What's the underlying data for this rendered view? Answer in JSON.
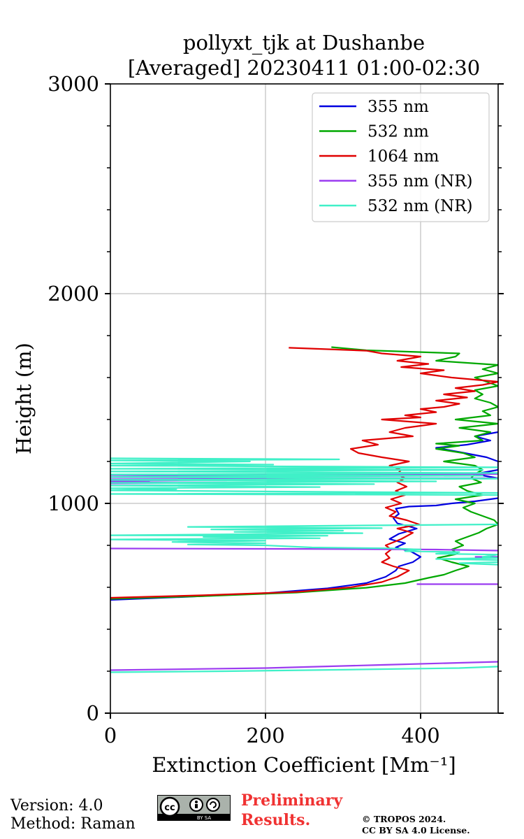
{
  "chart_data": {
    "type": "line",
    "title": [
      "pollyxt_tjk at Dushanbe",
      "[Averaged] 20230411 01:00-02:30"
    ],
    "xlabel": "Extinction Coefficient [Mm⁻¹]",
    "ylabel": "Height (m)",
    "xlim": [
      0,
      500
    ],
    "ylim": [
      0,
      3000
    ],
    "xticks": [
      "0",
      "200",
      "400"
    ],
    "yticks": [
      "0",
      "1000",
      "2000",
      "3000"
    ],
    "grid": true,
    "legend_position": "top-right",
    "series": [
      {
        "name": "355 nm",
        "color": "#0000e0",
        "points": [
          [
            0,
            540
          ],
          [
            100,
            555
          ],
          [
            200,
            572
          ],
          [
            280,
            595
          ],
          [
            330,
            620
          ],
          [
            355,
            650
          ],
          [
            368,
            680
          ],
          [
            372,
            700
          ],
          [
            390,
            720
          ],
          [
            400,
            745
          ],
          [
            388,
            770
          ],
          [
            368,
            790
          ],
          [
            380,
            810
          ],
          [
            360,
            830
          ],
          [
            372,
            855
          ],
          [
            395,
            880
          ],
          [
            370,
            905
          ],
          [
            365,
            930
          ],
          [
            372,
            950
          ],
          [
            368,
            975
          ],
          [
            385,
            985
          ],
          [
            420,
            990
          ],
          [
            440,
            1000
          ],
          [
            470,
            1010
          ],
          [
            500,
            1025
          ]
        ]
      },
      {
        "name": "355 nm",
        "color": "#0000e0",
        "points": [
          [
            500,
            1120
          ],
          [
            470,
            1140
          ],
          [
            500,
            1160
          ],
          [
            500,
            1200
          ],
          [
            485,
            1220
          ],
          [
            450,
            1245
          ],
          [
            420,
            1265
          ],
          [
            460,
            1280
          ],
          [
            490,
            1300
          ],
          [
            470,
            1320
          ],
          [
            500,
            1340
          ]
        ]
      },
      {
        "name": "532 nm",
        "color": "#00a800",
        "points": [
          [
            0,
            545
          ],
          [
            120,
            558
          ],
          [
            240,
            575
          ],
          [
            330,
            598
          ],
          [
            380,
            620
          ],
          [
            410,
            645
          ],
          [
            430,
            660
          ],
          [
            445,
            680
          ],
          [
            462,
            700
          ],
          [
            440,
            720
          ],
          [
            422,
            740
          ],
          [
            448,
            760
          ],
          [
            440,
            780
          ],
          [
            455,
            800
          ],
          [
            445,
            820
          ],
          [
            460,
            840
          ],
          [
            475,
            860
          ],
          [
            485,
            880
          ],
          [
            500,
            900
          ],
          [
            495,
            920
          ],
          [
            480,
            940
          ],
          [
            465,
            960
          ],
          [
            455,
            980
          ],
          [
            470,
            1000
          ],
          [
            445,
            1020
          ],
          [
            480,
            1040
          ],
          [
            460,
            1060
          ],
          [
            450,
            1080
          ],
          [
            478,
            1100
          ],
          [
            465,
            1120
          ],
          [
            470,
            1140
          ],
          [
            480,
            1160
          ],
          [
            470,
            1180
          ],
          [
            430,
            1200
          ],
          [
            470,
            1220
          ],
          [
            455,
            1240
          ],
          [
            420,
            1260
          ],
          [
            450,
            1275
          ],
          [
            420,
            1285
          ],
          [
            480,
            1300
          ],
          [
            470,
            1320
          ],
          [
            490,
            1340
          ],
          [
            450,
            1360
          ],
          [
            500,
            1380
          ],
          [
            445,
            1400
          ],
          [
            490,
            1420
          ],
          [
            480,
            1440
          ],
          [
            500,
            1460
          ],
          [
            490,
            1480
          ],
          [
            470,
            1500
          ],
          [
            480,
            1520
          ],
          [
            470,
            1540
          ],
          [
            500,
            1560
          ],
          [
            485,
            1580
          ],
          [
            470,
            1600
          ],
          [
            500,
            1620
          ],
          [
            480,
            1640
          ],
          [
            500,
            1660
          ],
          [
            420,
            1680
          ],
          [
            445,
            1700
          ],
          [
            450,
            1715
          ],
          [
            330,
            1730
          ],
          [
            285,
            1745
          ]
        ]
      },
      {
        "name": "1064 nm",
        "color": "#e00000",
        "points": [
          [
            0,
            550
          ],
          [
            120,
            562
          ],
          [
            240,
            578
          ],
          [
            310,
            600
          ],
          [
            350,
            625
          ],
          [
            370,
            650
          ],
          [
            385,
            680
          ],
          [
            365,
            700
          ],
          [
            350,
            720
          ],
          [
            360,
            740
          ],
          [
            355,
            760
          ],
          [
            362,
            780
          ],
          [
            355,
            800
          ],
          [
            375,
            830
          ],
          [
            390,
            860
          ],
          [
            370,
            880
          ],
          [
            398,
            900
          ],
          [
            382,
            920
          ],
          [
            360,
            940
          ],
          [
            368,
            960
          ],
          [
            355,
            980
          ],
          [
            375,
            1000
          ],
          [
            362,
            1020
          ],
          [
            380,
            1040
          ],
          [
            368,
            1060
          ],
          [
            382,
            1080
          ],
          [
            370,
            1100
          ],
          [
            380,
            1120
          ],
          [
            370,
            1140
          ],
          [
            375,
            1160
          ],
          [
            360,
            1180
          ],
          [
            385,
            1200
          ],
          [
            350,
            1220
          ],
          [
            320,
            1240
          ],
          [
            310,
            1260
          ],
          [
            345,
            1280
          ],
          [
            325,
            1300
          ],
          [
            390,
            1320
          ],
          [
            360,
            1340
          ],
          [
            380,
            1360
          ],
          [
            420,
            1380
          ],
          [
            350,
            1400
          ],
          [
            400,
            1410
          ],
          [
            380,
            1420
          ],
          [
            420,
            1435
          ],
          [
            400,
            1450
          ],
          [
            430,
            1460
          ],
          [
            450,
            1475
          ],
          [
            420,
            1490
          ],
          [
            460,
            1505
          ],
          [
            430,
            1520
          ],
          [
            470,
            1535
          ],
          [
            445,
            1550
          ],
          [
            480,
            1565
          ],
          [
            500,
            1580
          ],
          [
            440,
            1600
          ],
          [
            400,
            1620
          ],
          [
            430,
            1635
          ],
          [
            375,
            1650
          ],
          [
            410,
            1665
          ],
          [
            370,
            1680
          ],
          [
            400,
            1700
          ],
          [
            350,
            1715
          ],
          [
            330,
            1728
          ],
          [
            230,
            1742
          ]
        ]
      },
      {
        "name": "355 nm (NR)",
        "color": "#9b3cf0",
        "points": [
          [
            0,
            205
          ],
          [
            200,
            215
          ],
          [
            350,
            230
          ],
          [
            500,
            245
          ]
        ]
      },
      {
        "name": "355 nm (NR)",
        "color": "#9b3cf0",
        "points": [
          [
            0,
            785
          ],
          [
            250,
            783
          ],
          [
            420,
            780
          ],
          [
            500,
            775
          ]
        ]
      },
      {
        "name": "355 nm (NR)",
        "color": "#9b3cf0",
        "points": [
          [
            395,
            615
          ],
          [
            500,
            615
          ]
        ]
      },
      {
        "name": "355 nm (NR)",
        "color": "#9b3cf0",
        "points": [
          [
            500,
            745
          ],
          [
            470,
            745
          ]
        ]
      },
      {
        "name": "355 nm (NR)",
        "color": "#9b3cf0",
        "points": [
          [
            0,
            1095
          ],
          [
            100,
            1098
          ],
          [
            0,
            1102
          ],
          [
            50,
            1105
          ],
          [
            0,
            1108
          ],
          [
            150,
            1110
          ],
          [
            0,
            1115
          ],
          [
            500,
            1120
          ],
          [
            0,
            1125
          ],
          [
            200,
            1130
          ],
          [
            0,
            1135
          ],
          [
            500,
            1140
          ]
        ]
      },
      {
        "name": "532 nm (NR)",
        "color": "#40f0c8",
        "points": [
          [
            0,
            195
          ],
          [
            150,
            200
          ],
          [
            300,
            207
          ],
          [
            450,
            215
          ],
          [
            500,
            222
          ]
        ]
      },
      {
        "name": "532 nm (NR)",
        "color": "#40f0c8",
        "points": [
          [
            0,
            1215
          ],
          [
            295,
            1210
          ],
          [
            0,
            1205
          ],
          [
            180,
            1200
          ],
          [
            0,
            1190
          ],
          [
            210,
            1185
          ],
          [
            0,
            1180
          ],
          [
            500,
            1172
          ],
          [
            0,
            1165
          ],
          [
            480,
            1160
          ],
          [
            0,
            1152
          ],
          [
            500,
            1145
          ],
          [
            0,
            1138
          ],
          [
            480,
            1132
          ],
          [
            0,
            1126
          ],
          [
            500,
            1118
          ],
          [
            0,
            1112
          ],
          [
            420,
            1105
          ],
          [
            0,
            1098
          ],
          [
            340,
            1092
          ],
          [
            0,
            1085
          ],
          [
            270,
            1078
          ],
          [
            0,
            1072
          ],
          [
            85,
            1068
          ],
          [
            0,
            1062
          ],
          [
            500,
            1050
          ],
          [
            0,
            1045
          ],
          [
            500,
            1040
          ]
        ]
      },
      {
        "name": "532 nm (NR)",
        "color": "#40f0c8",
        "points": [
          [
            500,
            900
          ],
          [
            100,
            888
          ],
          [
            350,
            882
          ],
          [
            130,
            876
          ],
          [
            300,
            870
          ],
          [
            160,
            864
          ],
          [
            325,
            858
          ],
          [
            0,
            848
          ],
          [
            280,
            846
          ],
          [
            120,
            840
          ],
          [
            270,
            834
          ],
          [
            0,
            828
          ],
          [
            200,
            822
          ],
          [
            80,
            816
          ],
          [
            200,
            810
          ],
          [
            100,
            804
          ],
          [
            200,
            800
          ],
          [
            260,
            790
          ],
          [
            360,
            786
          ],
          [
            400,
            780
          ],
          [
            380,
            772
          ],
          [
            450,
            768
          ],
          [
            420,
            760
          ],
          [
            500,
            756
          ],
          [
            480,
            745
          ],
          [
            500,
            740
          ],
          [
            420,
            735
          ],
          [
            500,
            730
          ],
          [
            500,
            720
          ],
          [
            450,
            715
          ],
          [
            500,
            708
          ]
        ]
      }
    ],
    "legend": [
      {
        "label": "355 nm",
        "color": "#0000e0"
      },
      {
        "label": "532 nm",
        "color": "#00a800"
      },
      {
        "label": "1064 nm",
        "color": "#e00000"
      },
      {
        "label": "355 nm (NR)",
        "color": "#9b3cf0"
      },
      {
        "label": "532 nm (NR)",
        "color": "#40f0c8"
      }
    ]
  },
  "footer": {
    "version": "Version: 4.0",
    "method": "Method: Raman",
    "license_logo_text": "cc",
    "license_logo_sub": "BY  SA",
    "preliminary": [
      "Preliminary",
      "Results."
    ],
    "copyright": [
      "© TROPOS 2024.",
      "CC BY SA 4.0 License."
    ]
  }
}
